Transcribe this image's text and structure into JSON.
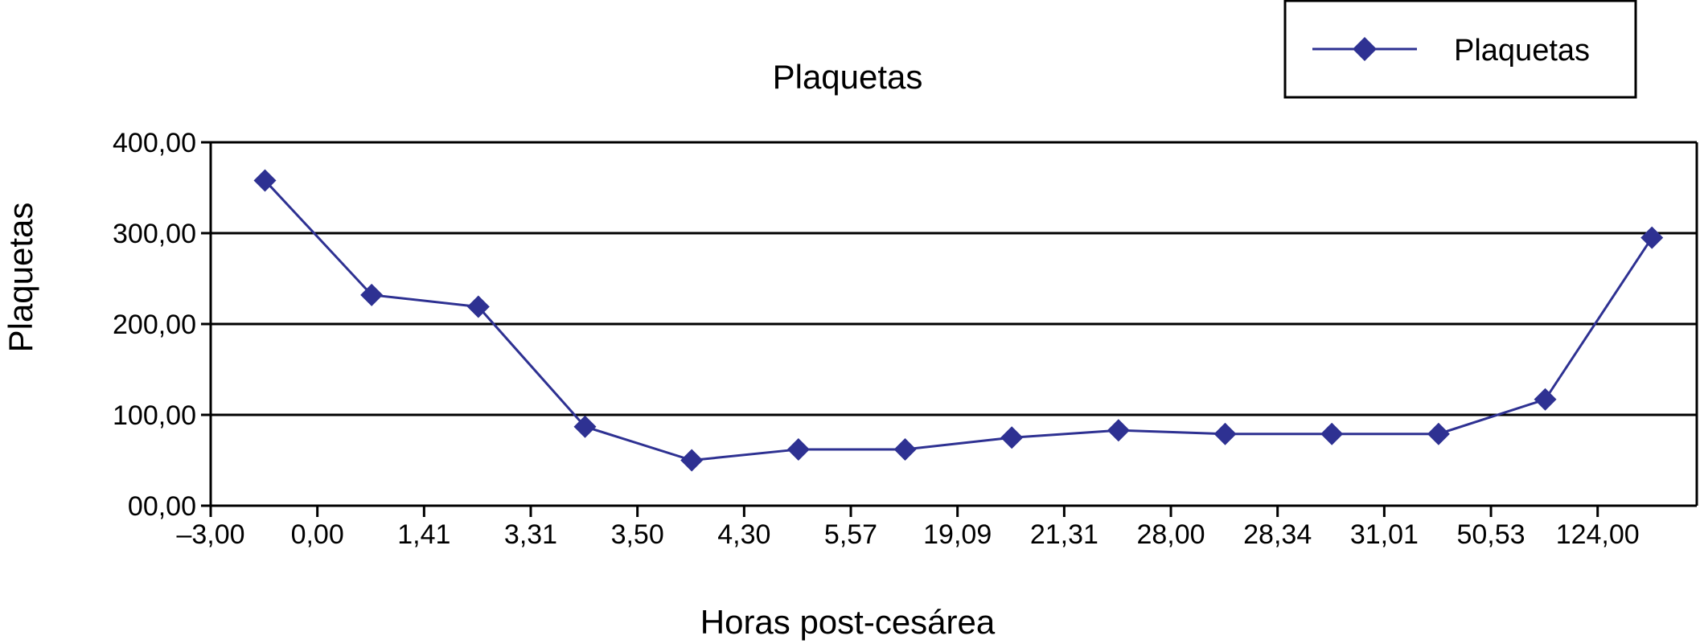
{
  "chart_data": {
    "type": "line",
    "title": "Plaquetas",
    "xlabel": "Horas post-cesárea",
    "ylabel": "Plaquetas",
    "x_tick_labels": [
      "–3,00",
      "0,00",
      "1,41",
      "3,31",
      "3,50",
      "4,30",
      "5,57",
      "19,09",
      "21,31",
      "28,00",
      "28,34",
      "31,01",
      "50,53",
      "124,00"
    ],
    "y_tick_labels": [
      "00,00",
      "100,00",
      "200,00",
      "300,00",
      "400,00"
    ],
    "ylim": [
      0,
      400
    ],
    "grid": true,
    "legend_position": "top-right",
    "series": [
      {
        "name": "Plaquetas",
        "color": "#2E3192",
        "marker": "diamond",
        "values": [
          358,
          232,
          219,
          87,
          50,
          62,
          62,
          75,
          83,
          79,
          79,
          79,
          117,
          295
        ]
      }
    ]
  }
}
